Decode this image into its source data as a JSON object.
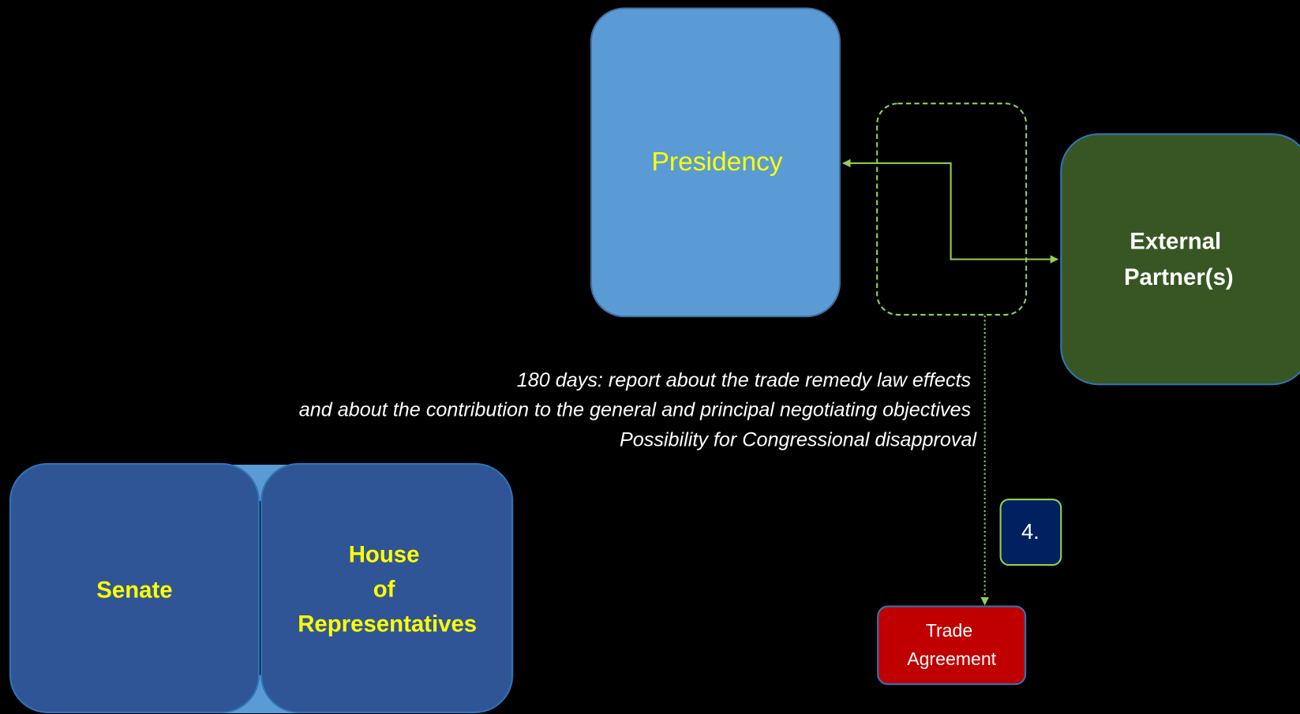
{
  "nodes": [
    {
      "lines": [
        "Presidency"
      ]
    },
    {
      "lines": [
        "External",
        "Partner(s)"
      ]
    },
    {
      "lines": [
        "Senate"
      ]
    },
    {
      "lines": [
        "House",
        "of",
        "Representatives"
      ]
    },
    {
      "lines": [
        "4."
      ]
    },
    {
      "lines": [
        "Trade",
        "Agreement"
      ]
    }
  ],
  "annotation": {
    "lines": [
      "180 days: report about the trade remedy law effects",
      "and about the contribution to the general and principal negotiating objectives",
      "Possibility for Congressional disapproval"
    ]
  }
}
